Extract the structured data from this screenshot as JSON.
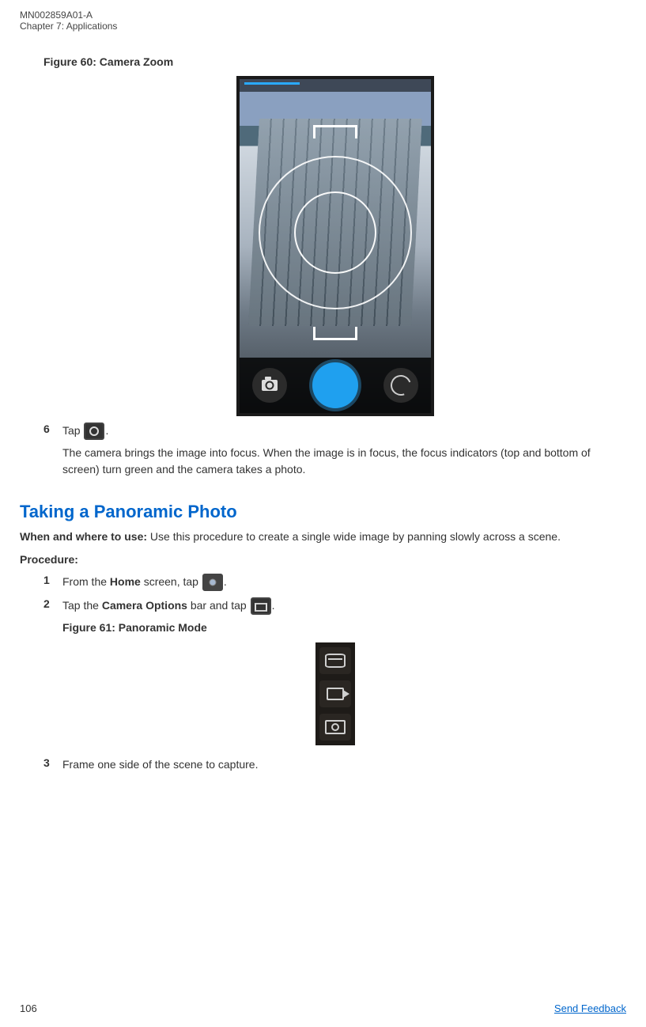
{
  "header": {
    "doc_id": "MN002859A01-A",
    "chapter": "Chapter 7:  Applications"
  },
  "fig60": {
    "caption": "Figure 60: Camera Zoom"
  },
  "step6": {
    "num": "6",
    "pre": "Tap ",
    "post": ".",
    "result": "The camera brings the image into focus. When the image is in focus, the focus indicators (top and bottom of screen) turn green and the camera takes a photo."
  },
  "section": {
    "title": "Taking a Panoramic Photo",
    "when_label": "When and where to use:",
    "when_text": " Use this procedure to create a single wide image by panning slowly across a scene.",
    "procedure_label": "Procedure:"
  },
  "step1": {
    "num": "1",
    "pre": "From the ",
    "bold": "Home",
    "mid": " screen, tap ",
    "post": "."
  },
  "step2": {
    "num": "2",
    "pre": "Tap the ",
    "bold": "Camera Options",
    "mid": " bar and tap ",
    "post": "."
  },
  "fig61": {
    "caption": "Figure 61: Panoramic Mode"
  },
  "step3": {
    "num": "3",
    "text": "Frame one side of the scene to capture."
  },
  "footer": {
    "page": "106",
    "link": "Send Feedback"
  },
  "colors": {
    "heading": "#0066cc",
    "link": "#0066cc"
  }
}
